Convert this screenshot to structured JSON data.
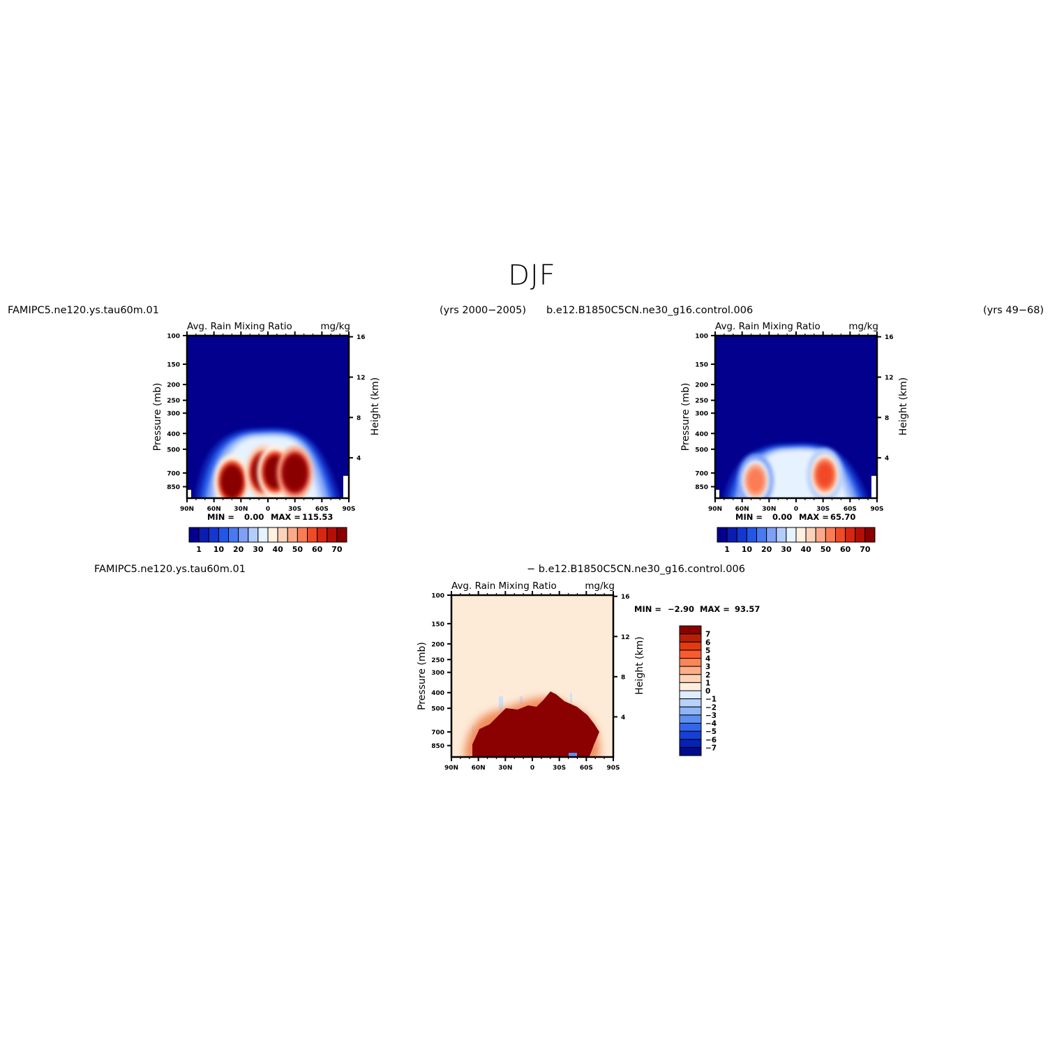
{
  "page": {
    "season_title": "DJF",
    "top_left_case": "FAMIPC5.ne120.ys.tau60m.01",
    "top_left_years": "(yrs 2000−2005)",
    "top_right_case": "b.e12.B1850C5CN.ne30_g16.control.006",
    "top_right_years": "(yrs 49−68)",
    "diff_case_a": "FAMIPC5.ne120.ys.tau60m.01",
    "diff_case_b": "− b.e12.B1850C5CN.ne30_g16.control.006"
  },
  "chart_data": [
    {
      "type": "heatmap",
      "panel": "test",
      "title_left": "Avg. Rain Mixing Ratio",
      "title_right": "mg/kg",
      "ylabel_left": "Pressure (mb)",
      "ylabel_right": "Height (km)",
      "x_ticks": [
        "90N",
        "60N",
        "30N",
        "0",
        "30S",
        "60S",
        "90S"
      ],
      "y_ticks_pressure": [
        "100",
        "150",
        "200",
        "250",
        "300",
        "400",
        "500",
        "700",
        "850"
      ],
      "y_ticks_height": [
        "16",
        "12",
        "8",
        "4"
      ],
      "min_label": "MIN =",
      "min_value": "0.00",
      "max_label": "MAX =",
      "max_value": "115.53",
      "colorbar_labels": [
        "1",
        "10",
        "20",
        "30",
        "40",
        "50",
        "60",
        "70"
      ],
      "blobs": [
        {
          "lat": 40,
          "p": 790,
          "value": 95
        },
        {
          "lat": 5,
          "p": 690,
          "value": 110
        },
        {
          "lat": -8,
          "p": 690,
          "value": 100
        },
        {
          "lat": -30,
          "p": 700,
          "value": 115
        }
      ]
    },
    {
      "type": "heatmap",
      "panel": "control",
      "title_left": "Avg. Rain Mixing Ratio",
      "title_right": "mg/kg",
      "ylabel_left": "Pressure (mb)",
      "ylabel_right": "Height (km)",
      "x_ticks": [
        "90N",
        "60N",
        "30N",
        "0",
        "30S",
        "60S",
        "90S"
      ],
      "y_ticks_pressure": [
        "100",
        "150",
        "200",
        "250",
        "300",
        "400",
        "500",
        "700",
        "850"
      ],
      "y_ticks_height": [
        "16",
        "12",
        "8",
        "4"
      ],
      "min_label": "MIN =",
      "min_value": "0.00",
      "max_label": "MAX =",
      "max_value": "65.70",
      "colorbar_labels": [
        "1",
        "10",
        "20",
        "30",
        "40",
        "50",
        "60",
        "70"
      ],
      "blobs": [
        {
          "lat": 45,
          "p": 780,
          "value": 60
        },
        {
          "lat": -32,
          "p": 720,
          "value": 66
        }
      ]
    },
    {
      "type": "heatmap",
      "panel": "difference",
      "title_left": "Avg. Rain Mixing Ratio",
      "title_right": "mg/kg",
      "ylabel_left": "Pressure (mb)",
      "ylabel_right": "Height (km)",
      "x_ticks": [
        "90N",
        "60N",
        "30N",
        "0",
        "30S",
        "60S",
        "90S"
      ],
      "y_ticks_pressure": [
        "100",
        "150",
        "200",
        "250",
        "300",
        "400",
        "500",
        "700",
        "850"
      ],
      "y_ticks_height": [
        "16",
        "12",
        "8",
        "4"
      ],
      "min_label": "MIN =",
      "min_value": "−2.90",
      "max_label": "MAX =",
      "max_value": "93.57",
      "colorbar_labels": [
        "7",
        "6",
        "5",
        "4",
        "3",
        "2",
        "1",
        "0",
        "−1",
        "−2",
        "−3",
        "−4",
        "−5",
        "−6",
        "−7"
      ]
    }
  ],
  "colors": {
    "seq_scale": [
      "#02008c",
      "#0a1db0",
      "#1437cf",
      "#2456e6",
      "#4a78ef",
      "#7ea0f6",
      "#b3cdfb",
      "#e6f2ff",
      "#fff0e0",
      "#fcd3b8",
      "#fca98a",
      "#fb7b55",
      "#f04a28",
      "#d82612",
      "#b30f08",
      "#8a0000"
    ],
    "diff_scale": [
      "#8a0000",
      "#b72008",
      "#e23a12",
      "#fa5a30",
      "#fb8558",
      "#fcae88",
      "#fdd3b8",
      "#fdeede",
      "#dfecff",
      "#b8d2fb",
      "#8fb4f7",
      "#5e90f2",
      "#3366ec",
      "#1540d8",
      "#0621b6",
      "#020b8e"
    ],
    "diff_background": "#fdebd8",
    "diff_core": "#8b0000"
  }
}
